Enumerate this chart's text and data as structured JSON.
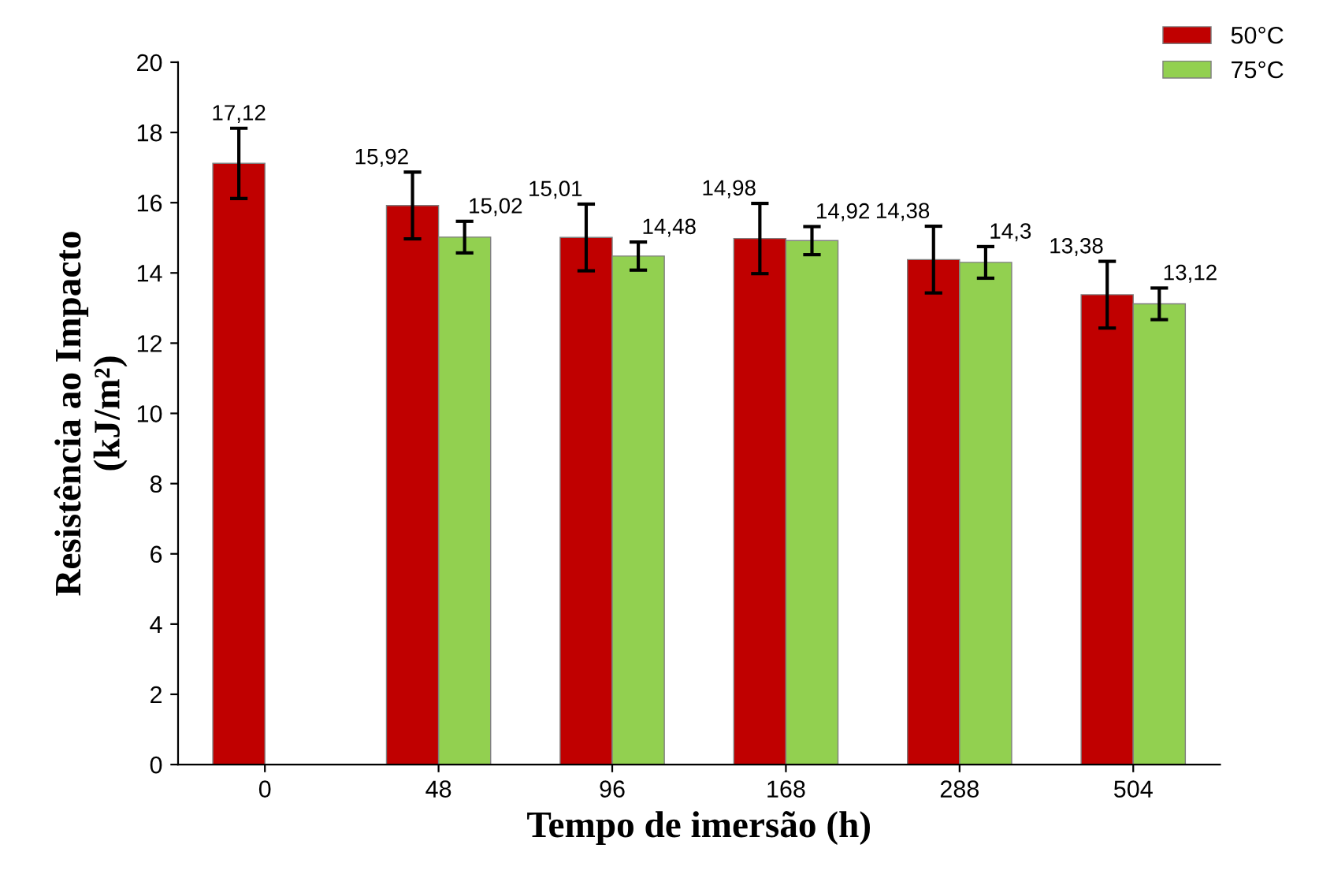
{
  "chart_data": {
    "type": "bar",
    "xlabel": "Tempo de imersão (h)",
    "ylabel": "Resistência ao Impacto\n(kJ/m²)",
    "categories": [
      "0",
      "48",
      "96",
      "168",
      "288",
      "504"
    ],
    "series": [
      {
        "name": "50°C",
        "color": "#c00000",
        "values": [
          17.12,
          15.92,
          15.01,
          14.98,
          14.38,
          13.38
        ],
        "errors": [
          1.0,
          0.95,
          0.95,
          1.0,
          0.95,
          0.95
        ],
        "value_labels": [
          "17,12",
          "15,92",
          "15,01",
          "14,98",
          "14,38",
          "13,38"
        ]
      },
      {
        "name": "75°C",
        "color": "#92d050",
        "values": [
          null,
          15.02,
          14.48,
          14.92,
          14.3,
          13.12
        ],
        "errors": [
          null,
          0.45,
          0.4,
          0.4,
          0.45,
          0.45
        ],
        "value_labels": [
          null,
          "15,02",
          "14,48",
          "14,92",
          "14,3",
          "13,12"
        ]
      }
    ],
    "ylim": [
      0,
      20
    ],
    "yticks": [
      0,
      2,
      4,
      6,
      8,
      10,
      12,
      14,
      16,
      18,
      20
    ],
    "grid": false,
    "legend": "top right"
  }
}
